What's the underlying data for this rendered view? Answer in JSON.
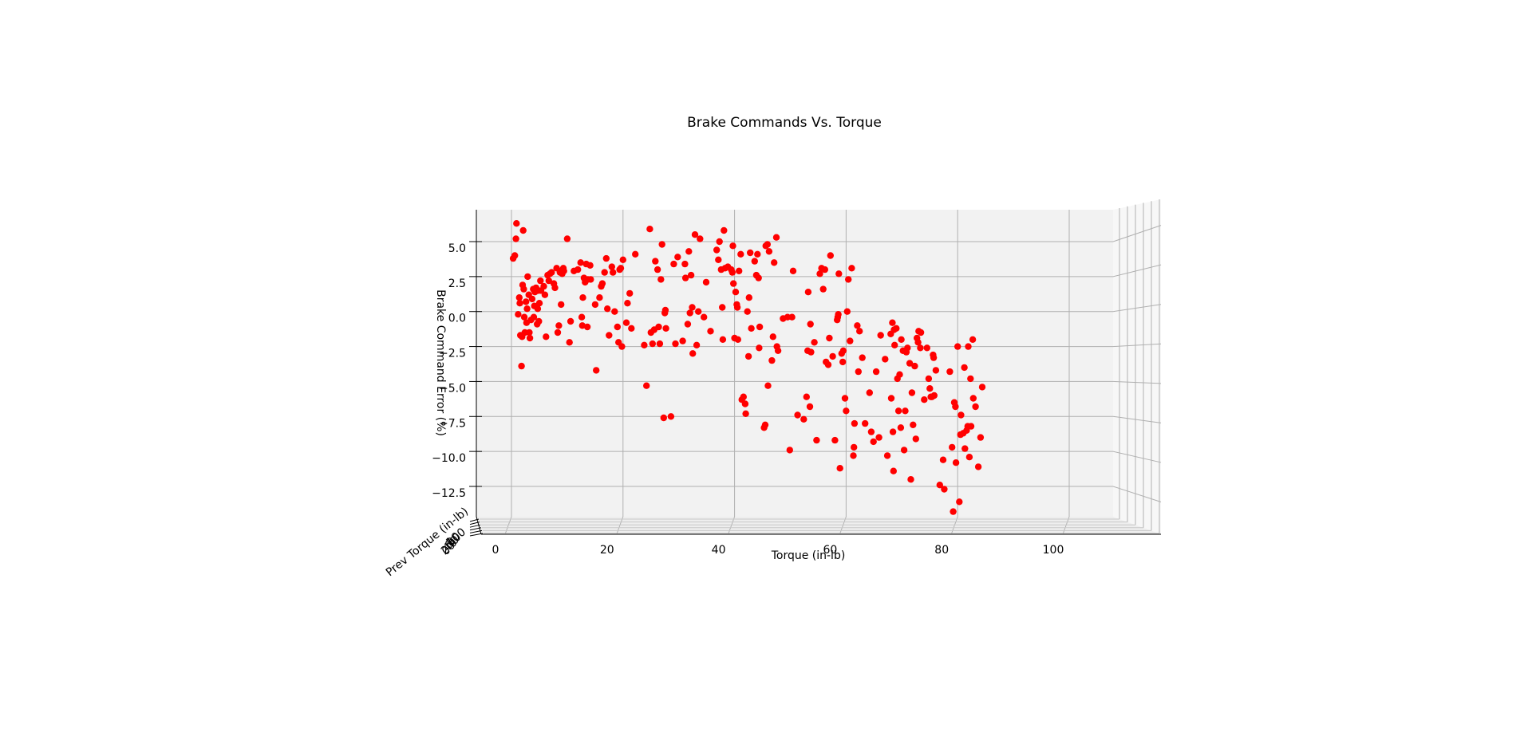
{
  "chart_data": {
    "type": "scatter",
    "title": "Brake Commands Vs. Torque",
    "xlabel": "Torque (in-lb)",
    "ylabel": "Brake Command Error  (%)",
    "zlabel": "Prev Torque (in-lb)",
    "xlim": [
      -3,
      108
    ],
    "ylim": [
      -14.8,
      7.2
    ],
    "x_ticks": [
      0,
      20,
      40,
      60,
      80,
      100
    ],
    "y_ticks": [
      5.0,
      2.5,
      0.0,
      -2.5,
      -5.0,
      -7.5,
      -10.0,
      -12.5
    ],
    "y_tick_labels": [
      "5.0",
      "2.5",
      "0.0",
      "−2.5",
      "−5.0",
      "−7.5",
      "−10.0",
      "−12.5"
    ],
    "x_tick_labels": [
      "0",
      "20",
      "40",
      "60",
      "80",
      "100"
    ],
    "z_tick_labels": [
      "0",
      "20",
      "40",
      "60",
      "80",
      "100"
    ],
    "grid": true,
    "marker_color": "#ff0000",
    "pane_color": "#f2f2f2",
    "gridline_color": "#b0b0b0",
    "series": [
      {
        "points": [
          [
            0.3,
            3.8
          ],
          [
            0.6,
            4.0
          ],
          [
            0.8,
            5.2
          ],
          [
            0.9,
            6.3
          ],
          [
            1.2,
            -0.2
          ],
          [
            1.4,
            1.0
          ],
          [
            1.5,
            0.6
          ],
          [
            1.6,
            -1.7
          ],
          [
            1.8,
            -3.9
          ],
          [
            1.9,
            -1.8
          ],
          [
            2.0,
            1.9
          ],
          [
            2.1,
            5.8
          ],
          [
            2.2,
            1.6
          ],
          [
            2.3,
            -0.4
          ],
          [
            2.4,
            -1.5
          ],
          [
            2.6,
            0.7
          ],
          [
            2.7,
            -0.8
          ],
          [
            2.8,
            0.2
          ],
          [
            2.9,
            2.5
          ],
          [
            3.1,
            1.2
          ],
          [
            3.2,
            -1.5
          ],
          [
            3.3,
            -1.9
          ],
          [
            3.5,
            -0.6
          ],
          [
            3.7,
            0.9
          ],
          [
            3.9,
            1.6
          ],
          [
            4.0,
            -0.4
          ],
          [
            4.1,
            0.4
          ],
          [
            4.2,
            1.4
          ],
          [
            4.4,
            1.7
          ],
          [
            4.6,
            -0.9
          ],
          [
            4.7,
            0.2
          ],
          [
            4.8,
            1.5
          ],
          [
            4.9,
            -0.7
          ],
          [
            5.0,
            0.6
          ],
          [
            5.2,
            2.2
          ],
          [
            5.3,
            1.5
          ],
          [
            5.8,
            1.8
          ],
          [
            6.0,
            1.2
          ],
          [
            6.2,
            -1.8
          ],
          [
            6.5,
            2.6
          ],
          [
            6.7,
            2.2
          ],
          [
            6.9,
            2.7
          ],
          [
            7.2,
            2.8
          ],
          [
            7.6,
            2.0
          ],
          [
            7.8,
            1.7
          ],
          [
            8.1,
            3.1
          ],
          [
            8.3,
            -1.5
          ],
          [
            8.5,
            -1.0
          ],
          [
            8.7,
            2.8
          ],
          [
            8.9,
            0.5
          ],
          [
            9.1,
            2.7
          ],
          [
            9.2,
            3.0
          ],
          [
            9.3,
            3.1
          ],
          [
            9.4,
            2.9
          ],
          [
            10.0,
            5.2
          ],
          [
            10.4,
            -2.2
          ],
          [
            10.6,
            -0.7
          ],
          [
            11.2,
            2.9
          ],
          [
            11.9,
            3.0
          ],
          [
            12.4,
            3.5
          ],
          [
            12.6,
            -0.4
          ],
          [
            12.7,
            -1.0
          ],
          [
            12.8,
            1.0
          ],
          [
            13.0,
            2.4
          ],
          [
            13.2,
            2.1
          ],
          [
            13.4,
            3.4
          ],
          [
            13.6,
            -1.1
          ],
          [
            13.7,
            2.3
          ],
          [
            14.1,
            3.3
          ],
          [
            14.2,
            2.3
          ],
          [
            15.0,
            0.5
          ],
          [
            15.2,
            -4.2
          ],
          [
            15.8,
            1.0
          ],
          [
            16.1,
            1.8
          ],
          [
            16.3,
            2.0
          ],
          [
            16.7,
            2.8
          ],
          [
            17.0,
            3.8
          ],
          [
            17.2,
            0.2
          ],
          [
            17.5,
            -1.7
          ],
          [
            18.0,
            3.2
          ],
          [
            18.2,
            2.8
          ],
          [
            18.5,
            0.0
          ],
          [
            19.0,
            -1.1
          ],
          [
            19.2,
            -2.2
          ],
          [
            19.4,
            3.0
          ],
          [
            19.6,
            3.1
          ],
          [
            19.8,
            -2.5
          ],
          [
            20.0,
            3.7
          ],
          [
            20.6,
            -0.8
          ],
          [
            20.8,
            0.6
          ],
          [
            21.2,
            1.3
          ],
          [
            21.5,
            -1.2
          ],
          [
            22.2,
            4.1
          ],
          [
            23.8,
            -2.4
          ],
          [
            24.2,
            -5.3
          ],
          [
            24.8,
            5.9
          ],
          [
            25.0,
            -1.5
          ],
          [
            25.3,
            -2.3
          ],
          [
            25.6,
            -1.3
          ],
          [
            25.8,
            3.6
          ],
          [
            26.2,
            3.0
          ],
          [
            26.4,
            -1.1
          ],
          [
            26.6,
            -2.3
          ],
          [
            26.8,
            2.3
          ],
          [
            27.0,
            4.8
          ],
          [
            27.3,
            -7.6
          ],
          [
            27.5,
            -0.1
          ],
          [
            27.6,
            0.1
          ],
          [
            27.7,
            -1.2
          ],
          [
            28.6,
            -7.5
          ],
          [
            29.1,
            3.4
          ],
          [
            29.4,
            -2.3
          ],
          [
            29.8,
            3.9
          ],
          [
            30.7,
            -2.1
          ],
          [
            31.1,
            3.4
          ],
          [
            31.2,
            2.4
          ],
          [
            31.6,
            -0.9
          ],
          [
            31.8,
            4.3
          ],
          [
            32.0,
            -0.1
          ],
          [
            32.2,
            2.6
          ],
          [
            32.4,
            0.3
          ],
          [
            32.5,
            -3.0
          ],
          [
            32.9,
            5.5
          ],
          [
            33.2,
            -2.4
          ],
          [
            33.5,
            0.0
          ],
          [
            33.8,
            5.2
          ],
          [
            34.5,
            -0.4
          ],
          [
            34.9,
            2.1
          ],
          [
            35.7,
            -1.4
          ],
          [
            36.8,
            4.4
          ],
          [
            37.1,
            3.7
          ],
          [
            37.3,
            5.0
          ],
          [
            37.6,
            3.0
          ],
          [
            37.8,
            0.3
          ],
          [
            37.9,
            -2.0
          ],
          [
            38.1,
            5.8
          ],
          [
            38.3,
            3.1
          ],
          [
            38.8,
            3.2
          ],
          [
            39.4,
            3.0
          ],
          [
            39.6,
            2.8
          ],
          [
            39.7,
            4.7
          ],
          [
            39.8,
            2.0
          ],
          [
            40.0,
            -1.9
          ],
          [
            40.2,
            1.4
          ],
          [
            40.4,
            0.5
          ],
          [
            40.5,
            0.3
          ],
          [
            40.6,
            -2.0
          ],
          [
            40.8,
            2.9
          ],
          [
            41.1,
            4.1
          ],
          [
            41.3,
            -6.3
          ],
          [
            41.6,
            -6.1
          ],
          [
            41.9,
            -6.6
          ],
          [
            42.0,
            -7.3
          ],
          [
            42.3,
            0.0
          ],
          [
            42.5,
            -3.2
          ],
          [
            42.8,
            4.2
          ],
          [
            42.6,
            1.0
          ],
          [
            43.0,
            -1.2
          ],
          [
            43.6,
            3.6
          ],
          [
            43.9,
            2.6
          ],
          [
            44.1,
            4.1
          ],
          [
            44.3,
            2.4
          ],
          [
            44.4,
            -2.6
          ],
          [
            44.5,
            -1.1
          ],
          [
            45.3,
            -8.3
          ],
          [
            45.5,
            -8.1
          ],
          [
            45.6,
            4.7
          ],
          [
            45.9,
            4.8
          ],
          [
            46.0,
            -5.3
          ],
          [
            46.2,
            4.3
          ],
          [
            46.7,
            -3.5
          ],
          [
            46.9,
            -1.8
          ],
          [
            47.1,
            3.5
          ],
          [
            47.5,
            5.3
          ],
          [
            47.6,
            -2.5
          ],
          [
            47.8,
            -2.8
          ],
          [
            48.7,
            -0.5
          ],
          [
            49.5,
            -0.4
          ],
          [
            49.9,
            -9.9
          ],
          [
            50.3,
            -0.4
          ],
          [
            50.5,
            2.9
          ],
          [
            51.3,
            -7.4
          ],
          [
            52.4,
            -7.7
          ],
          [
            52.9,
            -6.1
          ],
          [
            53.1,
            -2.8
          ],
          [
            53.2,
            1.4
          ],
          [
            53.5,
            -6.8
          ],
          [
            53.6,
            -0.9
          ],
          [
            53.7,
            -2.9
          ],
          [
            54.3,
            -2.2
          ],
          [
            54.7,
            -9.2
          ],
          [
            55.3,
            2.7
          ],
          [
            55.6,
            3.1
          ],
          [
            55.9,
            1.6
          ],
          [
            56.2,
            3.0
          ],
          [
            56.4,
            -3.6
          ],
          [
            56.8,
            -3.8
          ],
          [
            57.0,
            -1.9
          ],
          [
            57.2,
            4.0
          ],
          [
            57.6,
            -3.2
          ],
          [
            58.0,
            -9.2
          ],
          [
            58.4,
            -0.6
          ],
          [
            58.5,
            -0.4
          ],
          [
            58.6,
            -0.2
          ],
          [
            58.7,
            2.7
          ],
          [
            58.9,
            -11.2
          ],
          [
            59.2,
            -3.0
          ],
          [
            59.4,
            -3.6
          ],
          [
            59.5,
            -2.8
          ],
          [
            59.8,
            -6.2
          ],
          [
            60.0,
            -7.1
          ],
          [
            60.2,
            0.0
          ],
          [
            60.4,
            2.3
          ],
          [
            60.7,
            -2.1
          ],
          [
            61.0,
            3.1
          ],
          [
            61.3,
            -10.3
          ],
          [
            61.4,
            -9.7
          ],
          [
            61.5,
            -8.0
          ],
          [
            62.0,
            -1.0
          ],
          [
            62.2,
            -4.3
          ],
          [
            62.4,
            -1.4
          ],
          [
            62.9,
            -3.3
          ],
          [
            63.4,
            -8.0
          ],
          [
            64.2,
            -5.8
          ],
          [
            64.5,
            -8.6
          ],
          [
            64.9,
            -9.3
          ],
          [
            65.4,
            -4.3
          ],
          [
            65.9,
            -9.0
          ],
          [
            66.2,
            -1.7
          ],
          [
            67.0,
            -3.4
          ],
          [
            67.4,
            -10.3
          ],
          [
            68.0,
            -1.6
          ],
          [
            68.1,
            -6.2
          ],
          [
            68.3,
            -0.8
          ],
          [
            68.4,
            -8.6
          ],
          [
            68.5,
            -11.4
          ],
          [
            68.6,
            -1.3
          ],
          [
            68.7,
            -2.4
          ],
          [
            69.0,
            -1.2
          ],
          [
            69.2,
            -4.8
          ],
          [
            69.4,
            -7.1
          ],
          [
            69.6,
            -4.5
          ],
          [
            69.8,
            -8.3
          ],
          [
            69.9,
            -2.0
          ],
          [
            70.2,
            -2.8
          ],
          [
            70.4,
            -9.9
          ],
          [
            70.6,
            -7.1
          ],
          [
            70.8,
            -2.9
          ],
          [
            71.0,
            -2.6
          ],
          [
            71.4,
            -3.7
          ],
          [
            71.6,
            -12.0
          ],
          [
            71.8,
            -5.8
          ],
          [
            72.0,
            -8.1
          ],
          [
            72.3,
            -3.9
          ],
          [
            72.5,
            -9.1
          ],
          [
            72.7,
            -1.9
          ],
          [
            72.9,
            -2.2
          ],
          [
            73.0,
            -1.4
          ],
          [
            73.3,
            -2.6
          ],
          [
            73.4,
            -1.5
          ],
          [
            74.0,
            -6.3
          ],
          [
            74.5,
            -2.6
          ],
          [
            74.8,
            -4.8
          ],
          [
            75.0,
            -5.5
          ],
          [
            75.2,
            -6.1
          ],
          [
            75.4,
            -6.1
          ],
          [
            75.6,
            -3.1
          ],
          [
            75.7,
            -3.3
          ],
          [
            75.8,
            -6.0
          ],
          [
            76.1,
            -4.2
          ],
          [
            76.8,
            -12.4
          ],
          [
            77.4,
            -10.6
          ],
          [
            77.6,
            -12.7
          ],
          [
            78.6,
            -4.3
          ],
          [
            79.0,
            -9.7
          ],
          [
            79.2,
            -14.3
          ],
          [
            79.4,
            -6.5
          ],
          [
            79.6,
            -6.8
          ],
          [
            79.7,
            -10.8
          ],
          [
            80.0,
            -2.5
          ],
          [
            80.3,
            -13.6
          ],
          [
            80.5,
            -8.8
          ],
          [
            80.6,
            -7.4
          ],
          [
            81.0,
            -8.7
          ],
          [
            81.2,
            -4.0
          ],
          [
            81.3,
            -9.8
          ],
          [
            81.6,
            -8.5
          ],
          [
            81.8,
            -8.2
          ],
          [
            81.9,
            -2.5
          ],
          [
            82.1,
            -10.4
          ],
          [
            82.3,
            -4.8
          ],
          [
            82.4,
            -8.2
          ],
          [
            82.7,
            -2.0
          ],
          [
            82.8,
            -6.2
          ],
          [
            83.2,
            -6.8
          ],
          [
            83.7,
            -11.1
          ],
          [
            84.1,
            -9.0
          ],
          [
            84.4,
            -5.4
          ]
        ]
      }
    ]
  }
}
